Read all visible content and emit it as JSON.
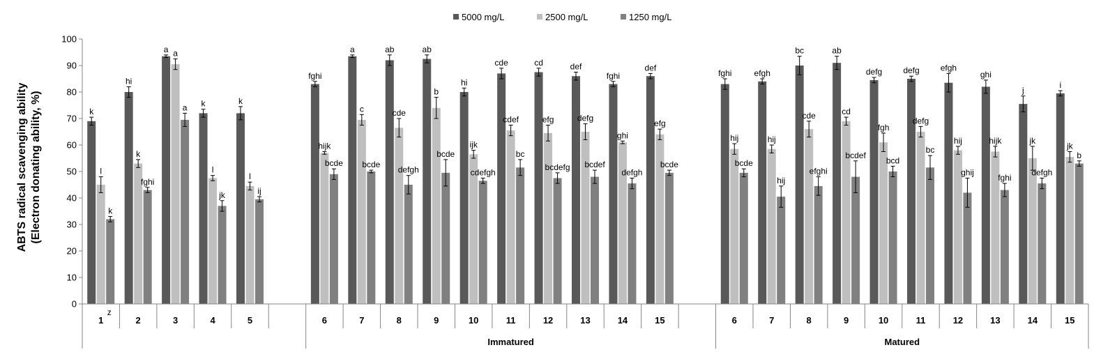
{
  "chart_data": {
    "type": "bar",
    "ylabel_line1": "ABTS radical scavenging ability",
    "ylabel_line2": "(Electron donating ability, %)",
    "ylim": [
      0,
      100
    ],
    "yticks": [
      0,
      10,
      20,
      30,
      40,
      50,
      60,
      70,
      80,
      90,
      100
    ],
    "legend_position": "top-center",
    "grid": false,
    "series_colors": [
      "#595959",
      "#bfbfbf",
      "#808080"
    ],
    "series": [
      {
        "name": "5000 mg/L"
      },
      {
        "name": "2500 mg/L"
      },
      {
        "name": "1250 mg/L"
      }
    ],
    "groups": [
      {
        "label": "",
        "categories": [
          {
            "label": "1",
            "superscript": "z",
            "values": [
              69,
              45,
              32
            ],
            "errors": [
              1.5,
              3,
              1
            ],
            "letters": [
              "k",
              "l",
              "k"
            ]
          },
          {
            "label": "2",
            "values": [
              80,
              53,
              43
            ],
            "errors": [
              2,
              1.5,
              1
            ],
            "letters": [
              "hi",
              "k",
              "fghi"
            ]
          },
          {
            "label": "3",
            "values": [
              93.5,
              90.5,
              69.5
            ],
            "errors": [
              0.5,
              2,
              2.5
            ],
            "letters": [
              "a",
              "a",
              "a"
            ]
          },
          {
            "label": "4",
            "values": [
              72,
              47.5,
              37
            ],
            "errors": [
              1.5,
              1,
              2
            ],
            "letters": [
              "k",
              "l",
              "jk"
            ]
          },
          {
            "label": "5",
            "values": [
              72,
              44.5,
              39.5
            ],
            "errors": [
              2.5,
              1.5,
              1
            ],
            "letters": [
              "k",
              "l",
              "ij"
            ]
          }
        ]
      },
      {
        "label": "Immatured",
        "categories": [
          {
            "label": "6",
            "values": [
              83,
              57,
              49
            ],
            "errors": [
              1,
              0.5,
              2
            ],
            "letters": [
              "fghi",
              "hijk",
              "bcde"
            ]
          },
          {
            "label": "7",
            "values": [
              93.5,
              69.5,
              50
            ],
            "errors": [
              0.5,
              2,
              0.5
            ],
            "letters": [
              "a",
              "c",
              "bcde"
            ]
          },
          {
            "label": "8",
            "values": [
              92,
              66.5,
              45
            ],
            "errors": [
              2,
              3.5,
              3.5
            ],
            "letters": [
              "ab",
              "cde",
              "defgh"
            ]
          },
          {
            "label": "9",
            "values": [
              92.5,
              74,
              49.5
            ],
            "errors": [
              1.5,
              4,
              5
            ],
            "letters": [
              "ab",
              "b",
              "bcde"
            ]
          },
          {
            "label": "10",
            "values": [
              80,
              56.5,
              46.5
            ],
            "errors": [
              1.5,
              1.5,
              1
            ],
            "letters": [
              "hi",
              "ijk",
              "cdefgh"
            ]
          },
          {
            "label": "11",
            "values": [
              87,
              65.5,
              51.5
            ],
            "errors": [
              2,
              2,
              3
            ],
            "letters": [
              "cde",
              "cdef",
              "bc"
            ]
          },
          {
            "label": "12",
            "values": [
              87.5,
              64.5,
              47.5
            ],
            "errors": [
              1.5,
              3,
              2
            ],
            "letters": [
              "cd",
              "efg",
              "bcdefg"
            ]
          },
          {
            "label": "13",
            "values": [
              86,
              65,
              48
            ],
            "errors": [
              1.5,
              3,
              2.5
            ],
            "letters": [
              "def",
              "defg",
              "bcdef"
            ]
          },
          {
            "label": "14",
            "values": [
              83,
              61,
              45.5
            ],
            "errors": [
              1,
              0.5,
              2
            ],
            "letters": [
              "fghi",
              "ghi",
              "defgh"
            ]
          },
          {
            "label": "15",
            "values": [
              86,
              64,
              49.5
            ],
            "errors": [
              1,
              2,
              1
            ],
            "letters": [
              "def",
              "efg",
              "bcde"
            ]
          }
        ]
      },
      {
        "label": "Matured",
        "categories": [
          {
            "label": "6",
            "values": [
              83,
              58.5,
              49.5
            ],
            "errors": [
              2,
              2,
              1.5
            ],
            "letters": [
              "fghi",
              "hij",
              "bcde"
            ]
          },
          {
            "label": "7",
            "values": [
              84,
              58.5,
              40.5
            ],
            "errors": [
              1,
              1.5,
              4
            ],
            "letters": [
              "efgh",
              "hij",
              "hij"
            ]
          },
          {
            "label": "8",
            "values": [
              90,
              66,
              44.5
            ],
            "errors": [
              3.5,
              3,
              3.5
            ],
            "letters": [
              "bc",
              "cde",
              "efghi"
            ]
          },
          {
            "label": "9",
            "values": [
              91,
              69,
              48
            ],
            "errors": [
              2.5,
              1.5,
              6
            ],
            "letters": [
              "ab",
              "cd",
              "bcdef"
            ]
          },
          {
            "label": "10",
            "values": [
              84.5,
              61,
              50
            ],
            "errors": [
              1,
              3.5,
              2
            ],
            "letters": [
              "defg",
              "fgh",
              "bcd"
            ]
          },
          {
            "label": "11",
            "values": [
              85,
              65,
              51.5
            ],
            "errors": [
              1,
              2,
              4.5
            ],
            "letters": [
              "defg",
              "defg",
              "bc"
            ]
          },
          {
            "label": "12",
            "values": [
              83.5,
              58,
              42
            ],
            "errors": [
              3.5,
              1.5,
              5.5
            ],
            "letters": [
              "efgh",
              "hij",
              "ghij"
            ]
          },
          {
            "label": "13",
            "values": [
              82,
              57.5,
              43
            ],
            "errors": [
              2.5,
              2,
              2.5
            ],
            "letters": [
              "ghi",
              "hijk",
              "fghi"
            ]
          },
          {
            "label": "14",
            "values": [
              75.5,
              55,
              45.5
            ],
            "errors": [
              3,
              4.5,
              2
            ],
            "letters": [
              "j",
              "jk",
              "defgh"
            ]
          },
          {
            "label": "15",
            "values": [
              79.5,
              55.5,
              53
            ],
            "errors": [
              1,
              2,
              1
            ],
            "letters": [
              "i",
              "jk",
              "b"
            ]
          }
        ]
      }
    ]
  }
}
